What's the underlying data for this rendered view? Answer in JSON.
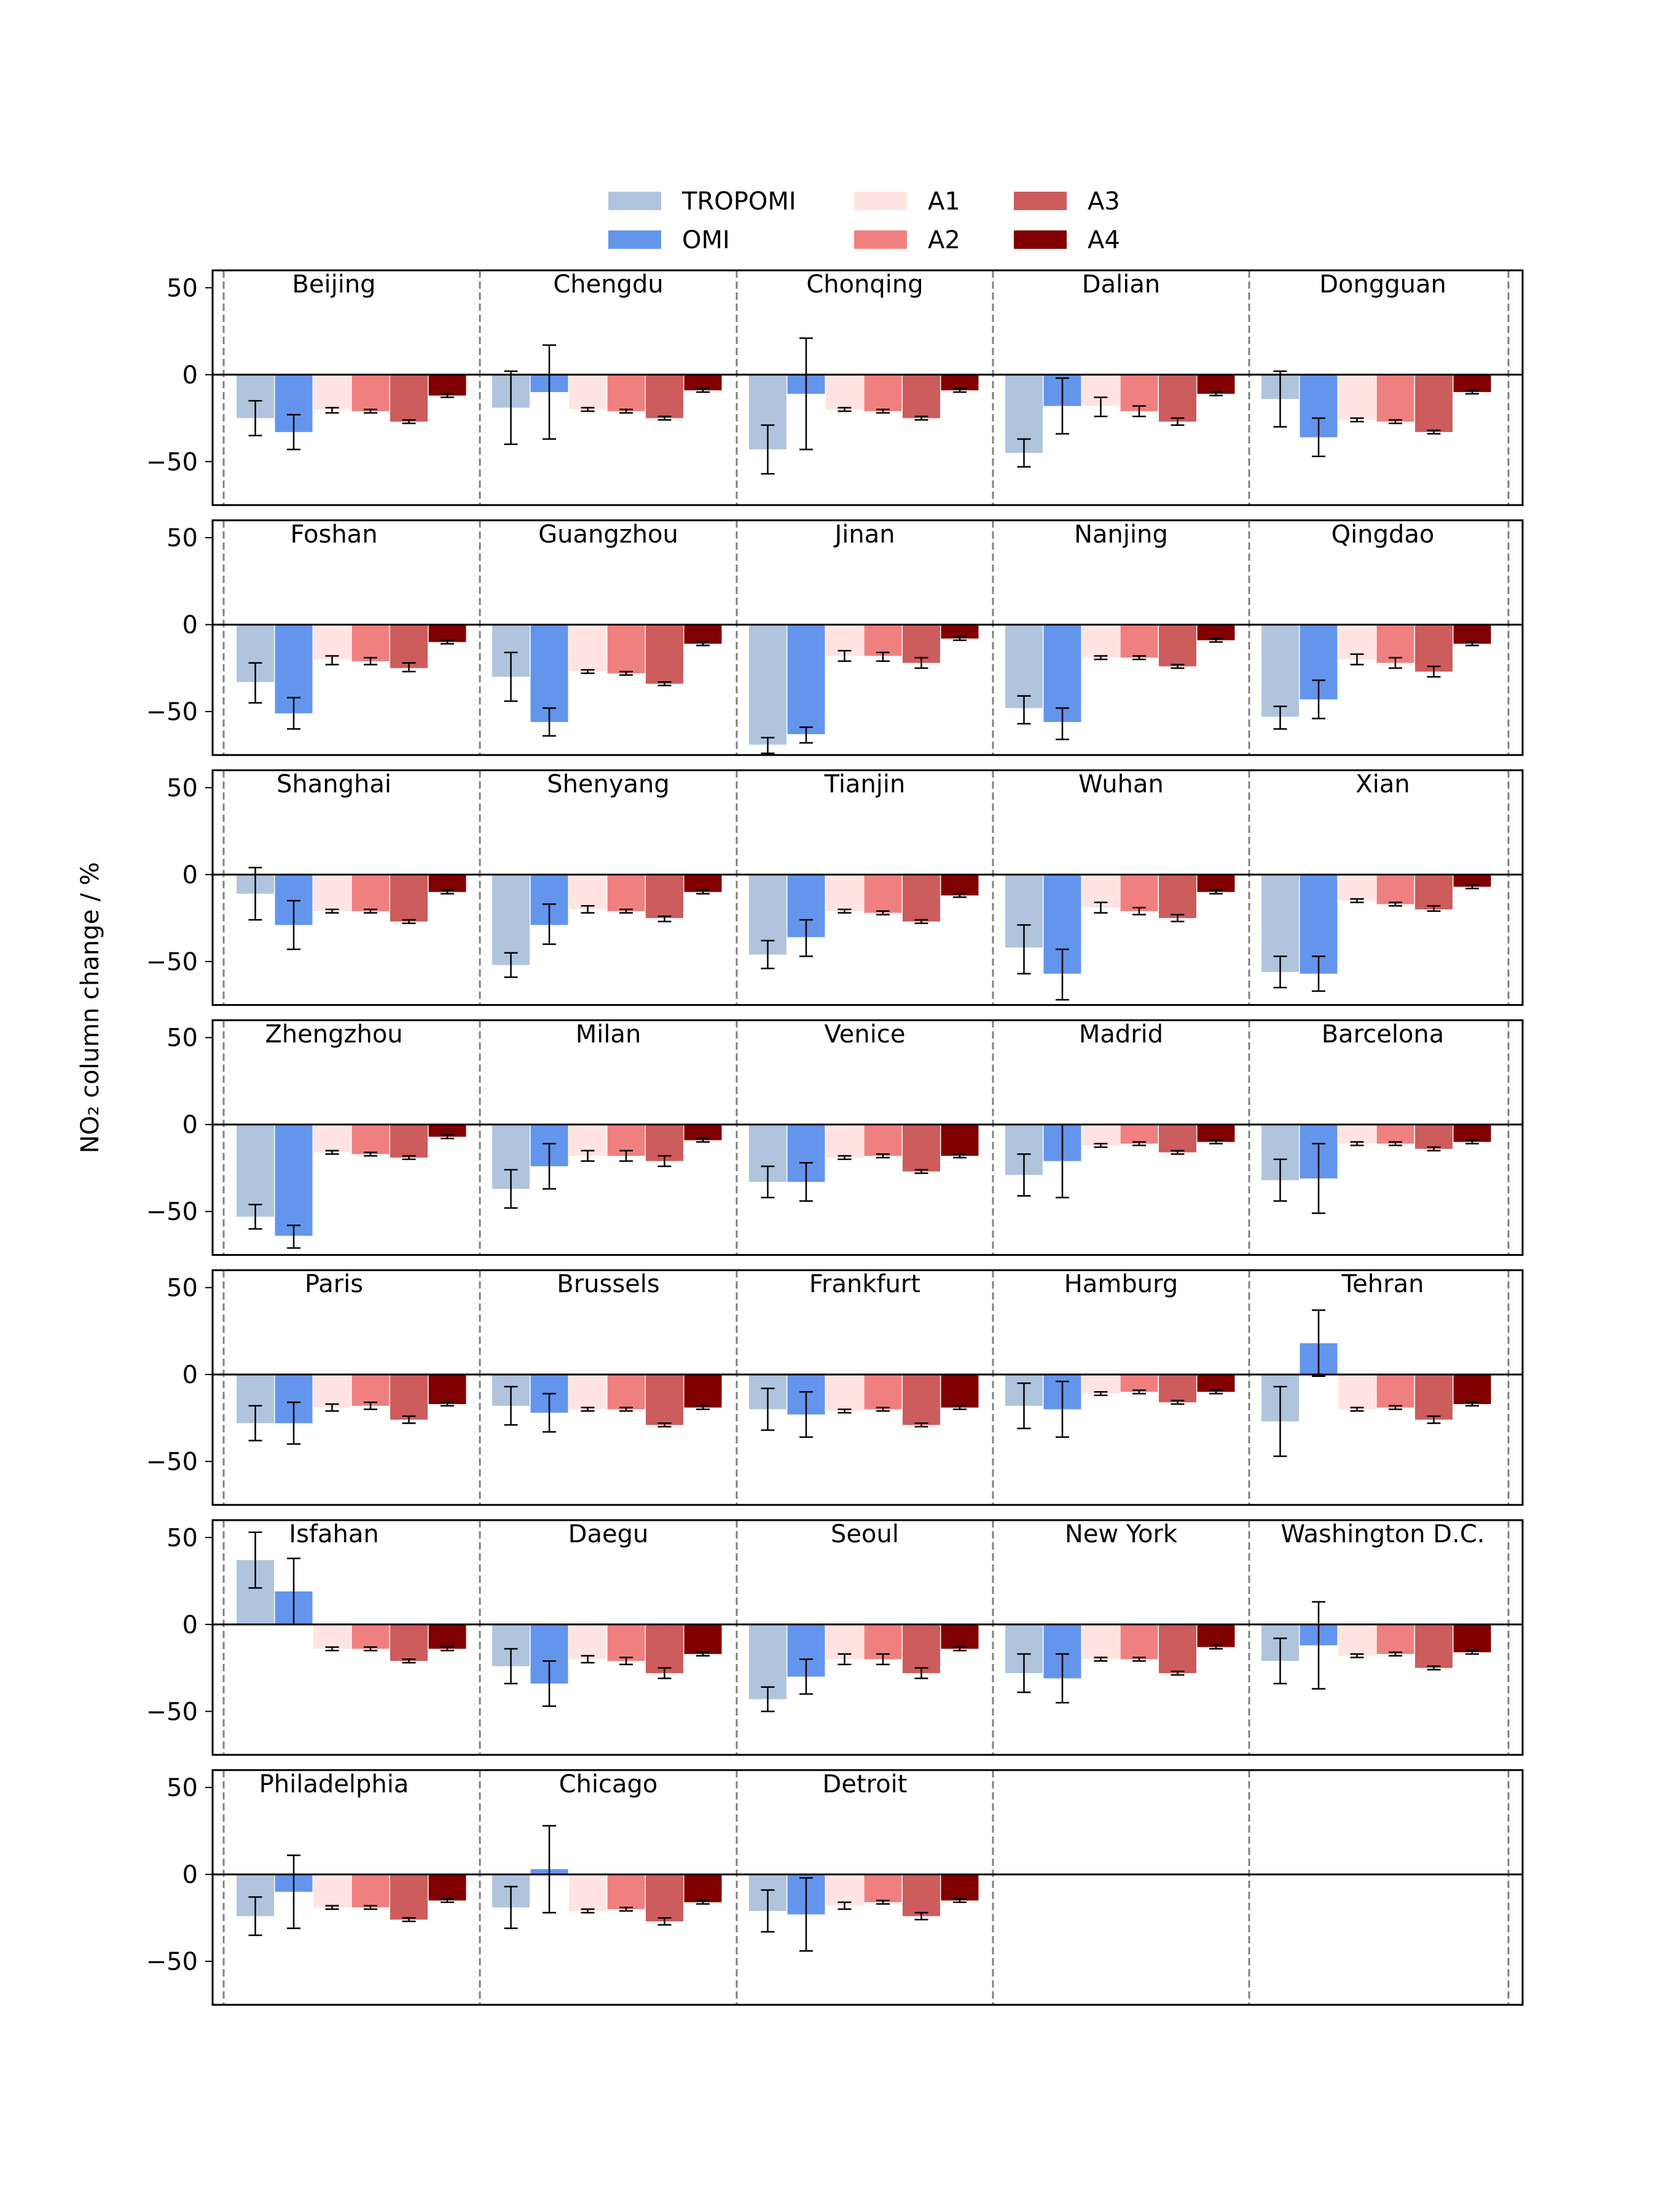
{
  "chart_data": {
    "type": "bar",
    "ylabel": "NO₂ column change / %",
    "ylim": [
      -75,
      60
    ],
    "yticks": [
      50,
      0,
      -50
    ],
    "ytick_labels": [
      "50",
      "0",
      "−50"
    ],
    "legend": {
      "placement": "top-center",
      "entries": [
        {
          "name": "TROPOMI",
          "color": "#b0c4de"
        },
        {
          "name": "OMI",
          "color": "#6495ed"
        },
        {
          "name": "A1",
          "color": "#ffe4e1"
        },
        {
          "name": "A2",
          "color": "#f08080"
        },
        {
          "name": "A3",
          "color": "#cd5c5c"
        },
        {
          "name": "A4",
          "color": "#800000"
        }
      ]
    },
    "series_names": [
      "TROPOMI",
      "OMI",
      "A1",
      "A2",
      "A3",
      "A4"
    ],
    "series_colors": [
      "#b0c4de",
      "#6495ed",
      "#ffe4e1",
      "#f08080",
      "#cd5c5c",
      "#800000"
    ],
    "cities": [
      {
        "name": "Beijing",
        "values": [
          -25,
          -33,
          -20,
          -21,
          -27,
          -12
        ],
        "err_low": [
          -35,
          -43,
          -22,
          -22,
          -28,
          -13
        ],
        "err_high": [
          -15,
          -23,
          -19,
          -20,
          -26,
          -11
        ]
      },
      {
        "name": "Chengdu",
        "values": [
          -19,
          -10,
          -20,
          -21,
          -25,
          -9
        ],
        "err_low": [
          -40,
          -37,
          -21,
          -22,
          -26,
          -10
        ],
        "err_high": [
          2,
          17,
          -19,
          -20,
          -24,
          -8
        ]
      },
      {
        "name": "Chonqing",
        "values": [
          -43,
          -11,
          -20,
          -21,
          -25,
          -9
        ],
        "err_low": [
          -57,
          -43,
          -21,
          -22,
          -26,
          -10
        ],
        "err_high": [
          -29,
          21,
          -19,
          -20,
          -24,
          -8
        ]
      },
      {
        "name": "Dalian",
        "values": [
          -45,
          -18,
          -18,
          -21,
          -27,
          -11
        ],
        "err_low": [
          -53,
          -34,
          -24,
          -24,
          -29,
          -12
        ],
        "err_high": [
          -37,
          -2,
          -13,
          -18,
          -25,
          -10
        ]
      },
      {
        "name": "Dongguan",
        "values": [
          -14,
          -36,
          -26,
          -27,
          -33,
          -10
        ],
        "err_low": [
          -30,
          -47,
          -27,
          -28,
          -34,
          -11
        ],
        "err_high": [
          2,
          -25,
          -25,
          -26,
          -32,
          -9
        ]
      },
      {
        "name": "Foshan",
        "values": [
          -33,
          -51,
          -20,
          -21,
          -25,
          -10
        ],
        "err_low": [
          -45,
          -60,
          -23,
          -23,
          -27,
          -11
        ],
        "err_high": [
          -22,
          -42,
          -18,
          -19,
          -22,
          -9
        ]
      },
      {
        "name": "Guangzhou",
        "values": [
          -30,
          -56,
          -27,
          -28,
          -34,
          -11
        ],
        "err_low": [
          -44,
          -64,
          -28,
          -29,
          -35,
          -12
        ],
        "err_high": [
          -16,
          -48,
          -26,
          -27,
          -33,
          -10
        ]
      },
      {
        "name": "Jinan",
        "values": [
          -69,
          -63,
          -18,
          -18,
          -22,
          -8
        ],
        "err_low": [
          -74,
          -68,
          -21,
          -21,
          -25,
          -9
        ],
        "err_high": [
          -65,
          -59,
          -15,
          -16,
          -19,
          -7
        ]
      },
      {
        "name": "Nanjing",
        "values": [
          -48,
          -56,
          -19,
          -19,
          -24,
          -9
        ],
        "err_low": [
          -57,
          -66,
          -20,
          -20,
          -25,
          -10
        ],
        "err_high": [
          -41,
          -48,
          -18,
          -18,
          -23,
          -8
        ]
      },
      {
        "name": "Qingdao",
        "values": [
          -53,
          -43,
          -20,
          -22,
          -27,
          -11
        ],
        "err_low": [
          -60,
          -54,
          -23,
          -25,
          -30,
          -12
        ],
        "err_high": [
          -47,
          -32,
          -17,
          -19,
          -24,
          -10
        ]
      },
      {
        "name": "Shanghai",
        "values": [
          -11,
          -29,
          -21,
          -21,
          -27,
          -10
        ],
        "err_low": [
          -26,
          -43,
          -22,
          -22,
          -28,
          -11
        ],
        "err_high": [
          4,
          -15,
          -20,
          -20,
          -26,
          -9
        ]
      },
      {
        "name": "Shenyang",
        "values": [
          -52,
          -29,
          -20,
          -21,
          -25,
          -10
        ],
        "err_low": [
          -59,
          -40,
          -22,
          -22,
          -27,
          -11
        ],
        "err_high": [
          -45,
          -17,
          -18,
          -20,
          -24,
          -9
        ]
      },
      {
        "name": "Tianjin",
        "values": [
          -46,
          -36,
          -21,
          -22,
          -27,
          -12
        ],
        "err_low": [
          -54,
          -47,
          -22,
          -23,
          -28,
          -13
        ],
        "err_high": [
          -38,
          -26,
          -20,
          -21,
          -26,
          -11
        ]
      },
      {
        "name": "Wuhan",
        "values": [
          -42,
          -57,
          -19,
          -21,
          -25,
          -10
        ],
        "err_low": [
          -57,
          -72,
          -22,
          -23,
          -27,
          -11
        ],
        "err_high": [
          -29,
          -43,
          -16,
          -19,
          -23,
          -9
        ]
      },
      {
        "name": "Xian",
        "values": [
          -56,
          -57,
          -15,
          -17,
          -20,
          -7
        ],
        "err_low": [
          -65,
          -67,
          -16,
          -18,
          -21,
          -8
        ],
        "err_high": [
          -47,
          -47,
          -14,
          -16,
          -18,
          -6
        ]
      },
      {
        "name": "Zhengzhou",
        "values": [
          -53,
          -64,
          -16,
          -17,
          -19,
          -7
        ],
        "err_low": [
          -60,
          -71,
          -17,
          -18,
          -20,
          -8
        ],
        "err_high": [
          -46,
          -58,
          -15,
          -16,
          -18,
          -6
        ]
      },
      {
        "name": "Milan",
        "values": [
          -37,
          -24,
          -18,
          -18,
          -21,
          -9
        ],
        "err_low": [
          -48,
          -37,
          -21,
          -21,
          -24,
          -10
        ],
        "err_high": [
          -26,
          -11,
          -15,
          -15,
          -18,
          -8
        ]
      },
      {
        "name": "Venice",
        "values": [
          -33,
          -33,
          -19,
          -18,
          -27,
          -18
        ],
        "err_low": [
          -42,
          -44,
          -20,
          -19,
          -28,
          -19
        ],
        "err_high": [
          -24,
          -22,
          -18,
          -17,
          -26,
          -17
        ]
      },
      {
        "name": "Madrid",
        "values": [
          -29,
          -21,
          -12,
          -11,
          -16,
          -10
        ],
        "err_low": [
          -41,
          -42,
          -13,
          -12,
          -17,
          -11
        ],
        "err_high": [
          -17,
          0,
          -11,
          -10,
          -15,
          -9
        ]
      },
      {
        "name": "Barcelona",
        "values": [
          -32,
          -31,
          -11,
          -11,
          -14,
          -10
        ],
        "err_low": [
          -44,
          -51,
          -12,
          -12,
          -15,
          -11
        ],
        "err_high": [
          -20,
          -11,
          -10,
          -10,
          -13,
          -9
        ]
      },
      {
        "name": "Paris",
        "values": [
          -28,
          -28,
          -19,
          -18,
          -26,
          -17
        ],
        "err_low": [
          -38,
          -40,
          -21,
          -20,
          -28,
          -18
        ],
        "err_high": [
          -18,
          -16,
          -17,
          -16,
          -24,
          -16
        ]
      },
      {
        "name": "Brussels",
        "values": [
          -18,
          -22,
          -20,
          -20,
          -29,
          -19
        ],
        "err_low": [
          -29,
          -33,
          -21,
          -21,
          -30,
          -20
        ],
        "err_high": [
          -7,
          -11,
          -19,
          -19,
          -28,
          -18
        ]
      },
      {
        "name": "Frankfurt",
        "values": [
          -20,
          -23,
          -21,
          -20,
          -29,
          -19
        ],
        "err_low": [
          -32,
          -36,
          -22,
          -21,
          -30,
          -20
        ],
        "err_high": [
          -8,
          -10,
          -20,
          -19,
          -28,
          -18
        ]
      },
      {
        "name": "Hamburg",
        "values": [
          -18,
          -20,
          -11,
          -10,
          -16,
          -10
        ],
        "err_low": [
          -31,
          -36,
          -12,
          -11,
          -17,
          -11
        ],
        "err_high": [
          -5,
          -4,
          -10,
          -9,
          -15,
          -9
        ]
      },
      {
        "name": "Tehran",
        "values": [
          -27,
          18,
          -20,
          -19,
          -26,
          -17
        ],
        "err_low": [
          -47,
          -1,
          -21,
          -20,
          -28,
          -18
        ],
        "err_high": [
          -7,
          37,
          -19,
          -18,
          -24,
          -16
        ]
      },
      {
        "name": "Isfahan",
        "values": [
          37,
          19,
          -14,
          -14,
          -21,
          -14
        ],
        "err_low": [
          21,
          0,
          -15,
          -15,
          -22,
          -15
        ],
        "err_high": [
          53,
          38,
          -13,
          -13,
          -20,
          -13
        ]
      },
      {
        "name": "Daegu",
        "values": [
          -24,
          -34,
          -20,
          -21,
          -28,
          -17
        ],
        "err_low": [
          -34,
          -47,
          -22,
          -23,
          -31,
          -18
        ],
        "err_high": [
          -14,
          -21,
          -18,
          -19,
          -25,
          -16
        ]
      },
      {
        "name": "Seoul",
        "values": [
          -43,
          -30,
          -20,
          -20,
          -28,
          -14
        ],
        "err_low": [
          -50,
          -40,
          -23,
          -23,
          -31,
          -15
        ],
        "err_high": [
          -36,
          -20,
          -17,
          -17,
          -25,
          -13
        ]
      },
      {
        "name": "New York",
        "values": [
          -28,
          -31,
          -20,
          -20,
          -28,
          -13
        ],
        "err_low": [
          -39,
          -45,
          -21,
          -21,
          -29,
          -14
        ],
        "err_high": [
          -17,
          -17,
          -19,
          -19,
          -27,
          -12
        ]
      },
      {
        "name": "Washington D.C.",
        "values": [
          -21,
          -12,
          -18,
          -17,
          -25,
          -16
        ],
        "err_low": [
          -34,
          -37,
          -19,
          -18,
          -26,
          -17
        ],
        "err_high": [
          -8,
          13,
          -17,
          -16,
          -24,
          -15
        ]
      },
      {
        "name": "Philadelphia",
        "values": [
          -24,
          -10,
          -19,
          -19,
          -26,
          -15
        ],
        "err_low": [
          -35,
          -31,
          -20,
          -20,
          -27,
          -16
        ],
        "err_high": [
          -13,
          11,
          -18,
          -18,
          -25,
          -14
        ]
      },
      {
        "name": "Chicago",
        "values": [
          -19,
          3,
          -21,
          -20,
          -27,
          -16
        ],
        "err_low": [
          -31,
          -22,
          -22,
          -21,
          -29,
          -17
        ],
        "err_high": [
          -7,
          28,
          -20,
          -19,
          -25,
          -15
        ]
      },
      {
        "name": "Detroit",
        "values": [
          -21,
          -23,
          -18,
          -16,
          -24,
          -15
        ],
        "err_low": [
          -33,
          -44,
          -20,
          -17,
          -26,
          -16
        ],
        "err_high": [
          -9,
          -2,
          -16,
          -15,
          -22,
          -14
        ]
      }
    ]
  }
}
